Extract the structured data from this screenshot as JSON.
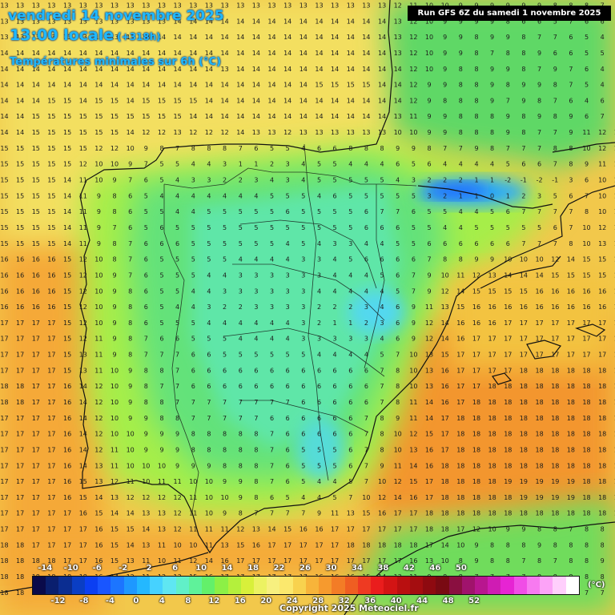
{
  "header": {
    "date_line": "vendredi 14 novembre 2025",
    "time_line": "13:00 locale",
    "lead_time": "(+318h)",
    "product": "Températures minimales sur 6h (°C)"
  },
  "run_info": "Run GFS 6Z du samedi 1 novembre 2025",
  "copyright": "Copyright 2025 Meteociel.fr",
  "legend": {
    "unit": "(°C)",
    "top_labels": [
      "-14",
      "-10",
      "-6",
      "-2",
      "2",
      "6",
      "10",
      "14",
      "18",
      "22",
      "26",
      "30",
      "34",
      "38",
      "42",
      "46",
      "50"
    ],
    "bottom_labels": [
      "-12",
      "-8",
      "-4",
      "0",
      "4",
      "8",
      "12",
      "16",
      "20",
      "24",
      "28",
      "32",
      "36",
      "40",
      "44",
      "48",
      "52"
    ],
    "colors": [
      "#0a0a4a",
      "#0a1f6e",
      "#0b2d91",
      "#0a3ec4",
      "#0b3ff2",
      "#1956ff",
      "#1c75ff",
      "#1e98ff",
      "#24b8ff",
      "#46d2ff",
      "#5fe6f2",
      "#61f0c8",
      "#5ff29a",
      "#63f06a",
      "#8cf046",
      "#b4f03c",
      "#d8f03a",
      "#ecf262",
      "#f7f07f",
      "#fbe86d",
      "#f8d24e",
      "#f7b43a",
      "#f69a2e",
      "#f37c26",
      "#ef5e22",
      "#ee3a22",
      "#ea1d1d",
      "#d31414",
      "#b90f10",
      "#a40d10",
      "#8e0a10",
      "#790a12",
      "#8a0f40",
      "#a0136c",
      "#b8168f",
      "#cf1cb3",
      "#e624d3",
      "#f04de6",
      "#f77af0",
      "#fca3f7",
      "#ffcffc",
      "#ffffff"
    ]
  },
  "map": {
    "grid_rows": [
      "13 13 13 13 13 13 13 13 13 13 13 13 13 13 13 13 13 13 13 13 13 13 13 13 13 12 11 10 10 9 9 9 9 9 9 8 8 8 7 6",
      "13 13 13 13 13 13 13 13 13 13 13 14 14 14 14 14 14 14 14 14 14 14 14 14 14 13 12 10 9 9 9 9 8 6 6 5 7 6 6 6",
      "13 13 13 13 13 13 13 13 13 14 14 14 14 14 14 14 14 14 14 14 14 14 14 14 14 13 12 10 9 9 8 9 9 8 7 7 6 5 4 5",
      "14 14 14 14 14 14 14 14 14 14 14 14 14 14 14 14 14 14 14 14 14 14 14 14 14 13 12 10 9 9 8 7 8 8 9 6 6 5 5 5",
      "14 14 14 14 14 14 14 14 14 14 14 14 14 14 13 14 14 14 14 14 14 14 14 14 14 14 12 10 9 8 8 9 9 8 7 9 7 6 4 7",
      "14 14 14 14 14 14 14 14 14 14 14 14 14 14 14 14 14 14 14 14 15 15 15 15 14 14 12 9 9 8 8 9 8 9 9 8 7 5 4 5",
      "14 14 14 15 15 14 15 15 14 15 15 15 15 14 14 14 14 14 14 14 14 14 14 14 14 14 12 9 8 8 8 9 7 9 8 7 6 4 6 7",
      "14 14 15 15 15 15 15 15 15 15 15 15 14 14 14 14 14 14 14 14 14 14 14 14 14 13 11 9 9 8 8 8 9 8 9 8 9 6 7 7",
      "14 14 15 15 15 15 15 15 14 12 12 13 12 12 12 14 13 13 12 13 13 13 13 13 13 10 10 9 9 8 8 8 9 8 7 7 9 11 12 13",
      "15 15 15 15 15 15 12 12 10 9 8 7 8 8 8 7 6 5 5 4 6 6 8 8 8 9 9 8 7 7 9 8 7 7 7 8 8 10 12 14",
      "15 15 15 15 15 12 10 10 9 7 5 5 4 4 3 1 1 2 3 4 5 5 4 4 4 6 5 6 4 4 4 4 5 6 6 7 8 9 11 14",
      "15 15 15 15 14 11 10 9 7 6 5 4 3 3 2 2 3 4 3 4 5 5 5 5 5 4 3 2 2 2 1 1 -2 -1 -2 -1 3 6 10 13",
      "15 15 15 15 14 11 9 8 6 5 4 4 4 4 4 4 4 5 5 5 4 6 5 5 5 5 5 3 2 1 1 0 1 2 3 5 6 7 10 14",
      "15 15 15 15 14 11 9 8 6 5 5 4 4 5 5 5 5 5 6 5 5 5 5 6 7 7 6 5 5 4 4 5 6 7 7 7 7 8 10 13",
      "15 15 15 15 14 11 9 7 6 5 6 5 5 5 5 5 5 5 5 5 5 5 5 6 6 6 5 5 4 4 5 5 5 5 5 6 7 10 12 14",
      "15 15 15 15 14 11 9 8 7 6 6 6 5 5 5 5 5 5 4 5 4 3 3 4 4 5 5 6 6 6 6 6 6 7 7 7 8 10 13 14",
      "16 16 16 16 15 12 10 8 7 6 5 5 5 5 5 4 4 4 4 3 3 4 5 6 6 6 6 7 8 8 9 9 10 10 10 12 14 15 15 15",
      "16 16 16 16 15 12 10 9 7 6 5 5 5 4 4 3 3 3 3 3 3 4 4 4 5 6 7 9 10 11 12 13 14 14 14 15 15 15 15 15",
      "16 16 16 16 15 12 10 9 8 6 5 5 4 4 3 3 3 3 3 3 4 4 4 4 4 5 7 9 12 14 15 15 15 15 16 16 16 16 16 16",
      "16 16 16 16 15 12 10 9 8 6 5 4 4 3 2 2 3 3 3 3 2 2 2 3 4 6 9 11 13 15 16 16 16 16 16 16 16 16 16 16",
      "17 17 17 17 15 12 10 9 8 6 5 5 5 4 4 4 4 4 4 3 2 1 1 2 3 6 9 12 14 16 16 16 17 17 17 17 17 17 17 17",
      "17 17 17 17 15 12 11 9 8 7 6 6 5 5 5 4 4 4 4 3 3 3 3 3 4 6 9 12 14 16 17 17 17 17 17 17 17 17 17 17",
      "17 17 17 17 15 13 11 9 8 7 7 7 6 6 5 5 5 5 5 5 4 4 4 4 5 7 10 13 15 17 17 17 17 17 17 17 17 17 17 17",
      "17 17 17 17 15 13 11 10 9 8 8 7 6 6 6 6 6 6 6 6 6 6 6 6 7 8 10 13 16 17 17 17 17 18 18 18 18 18 18 18",
      "18 18 17 17 16 14 12 10 9 8 7 7 6 6 6 6 6 6 6 6 6 6 6 6 7 8 10 13 16 17 17 18 18 18 18 18 18 18 18 18",
      "18 18 17 17 16 14 12 10 9 8 8 7 7 7 7 7 7 7 7 6 6 6 6 6 7 8 11 14 16 17 18 18 18 18 18 18 18 18 18 18",
      "17 17 17 17 16 14 12 10 9 9 8 8 7 7 7 7 7 6 6 6 6 6 6 7 8 9 11 14 17 18 18 18 18 18 18 18 18 18 18 18",
      "17 17 17 17 16 14 12 10 10 9 9 9 8 8 8 8 8 7 6 6 6 6 6 7 8 10 12 15 17 18 18 18 18 18 18 18 18 18 18 18",
      "17 17 17 17 16 14 12 11 10 9 9 9 8 8 8 8 8 7 6 5 5 5 6 7 8 10 13 16 17 18 18 18 18 18 18 18 18 18 18 18",
      "17 17 17 17 16 14 13 11 10 10 10 9 9 9 8 8 8 7 6 5 5 5 6 7 9 11 14 16 18 18 18 18 18 18 18 18 18 18 18 18",
      "17 17 17 17 16 15 13 12 11 10 11 11 10 10 9 9 8 7 6 5 4 4 5 7 10 12 15 17 18 18 18 18 19 19 19 19 19 18 18 18",
      "17 17 17 17 16 15 14 13 12 12 12 12 11 10 10 9 8 6 5 4 4 5 7 10 12 14 16 17 18 18 18 18 18 19 19 19 19 18 18 18",
      "17 17 17 17 17 16 15 14 14 13 13 12 11 10 9 8 7 7 7 7 9 11 13 15 16 17 17 18 18 18 18 18 18 18 18 18 18 18 18 17",
      "17 17 17 17 17 17 16 15 15 14 13 12 11 11 11 12 13 14 15 16 16 17 17 17 17 17 17 18 18 17 12 10 9 9 8 8 7 8 8 8",
      "18 18 17 17 17 17 16 15 14 13 11 10 10 11 13 15 16 17 17 17 17 17 18 18 18 18 18 17 14 10 9 8 8 8 9 8 8 8 8 8",
      "18 18 18 18 17 17 16 15 13 11 10 11 12 14 16 17 17 17 17 17 17 17 17 17 17 17 16 13 10 8 9 8 8 7 8 7 8 8 9 8",
      "18 18 18 18 18 18 16 14 12 11 12 13 15 16 17 17 17 17 17 17 16 16 16 15 14 13 11 9 8 8 7 7 7 7 8 8 8 8 8 7",
      "18 18 18 18 18 18 17 15 14 13 14 15 16 17 17 17 17 16 15 14 13 12 11 11 10 9 8 8 8 7 7 7 7 7 8 7 7 7 7 7"
    ]
  }
}
